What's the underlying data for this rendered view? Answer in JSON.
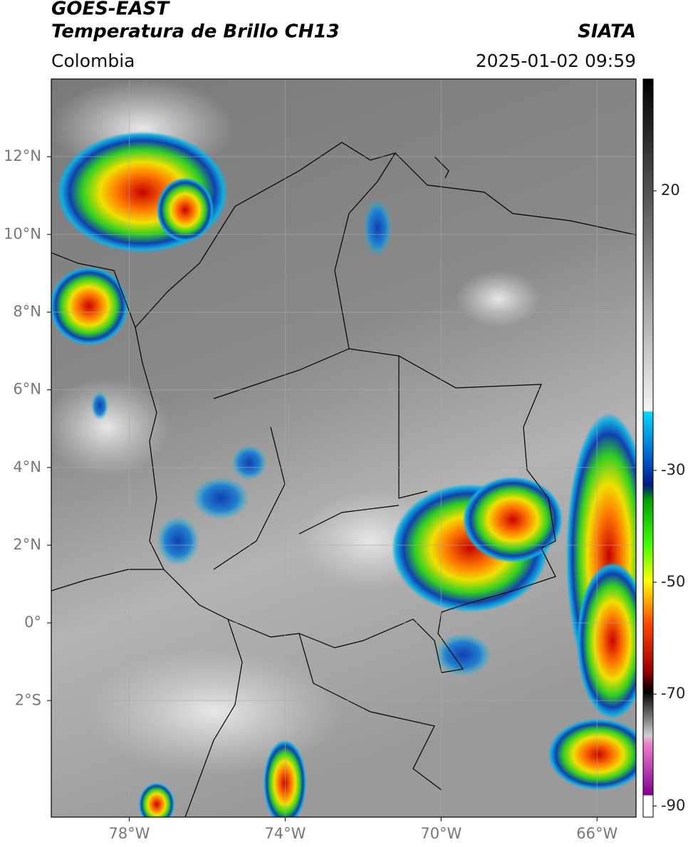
{
  "header": {
    "title": "GOES-EAST",
    "subtitle": "Temperatura de Brillo CH13",
    "source": "SIATA",
    "region": "Colombia",
    "datetime": "2025-01-02 09:59"
  },
  "map": {
    "xlim": [
      -80,
      -65
    ],
    "ylim": [
      -5,
      14
    ],
    "xticks": [
      {
        "value": -78,
        "label": "78°W"
      },
      {
        "value": -74,
        "label": "74°W"
      },
      {
        "value": -70,
        "label": "70°W"
      },
      {
        "value": -66,
        "label": "66°W"
      }
    ],
    "yticks": [
      {
        "value": 12,
        "label": "12°N"
      },
      {
        "value": 10,
        "label": "10°N"
      },
      {
        "value": 8,
        "label": "8°N"
      },
      {
        "value": 6,
        "label": "6°N"
      },
      {
        "value": 4,
        "label": "4°N"
      },
      {
        "value": 2,
        "label": "2°N"
      },
      {
        "value": 0,
        "label": "0°"
      },
      {
        "value": -2,
        "label": "2°S"
      }
    ],
    "grid": true
  },
  "colorbar": {
    "lim": [
      -92,
      40
    ],
    "ticks": [
      20,
      -30,
      -50,
      -70,
      -90
    ]
  }
}
